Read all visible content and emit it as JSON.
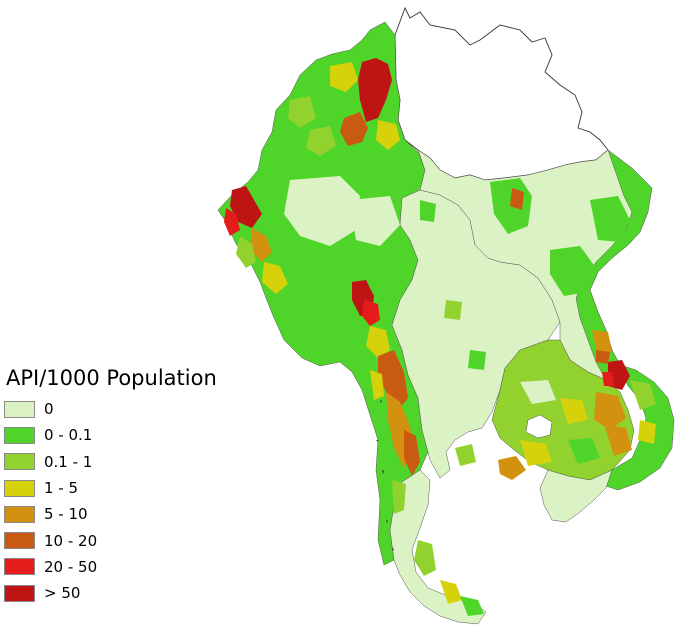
{
  "legend": {
    "title": "API/1000 Population",
    "classes": [
      {
        "label": "0",
        "color": "#daf2c4"
      },
      {
        "label": "0 - 0.1",
        "color": "#4fd42a"
      },
      {
        "label": "0.1 - 1",
        "color": "#92d22e"
      },
      {
        "label": "1 - 5",
        "color": "#d5d20b"
      },
      {
        "label": "5 - 10",
        "color": "#d2920f"
      },
      {
        "label": "10 - 20",
        "color": "#c95a12"
      },
      {
        "label": "20 - 50",
        "color": "#e41c1c"
      },
      {
        "label": "> 50",
        "color": "#bf1414"
      }
    ]
  }
}
